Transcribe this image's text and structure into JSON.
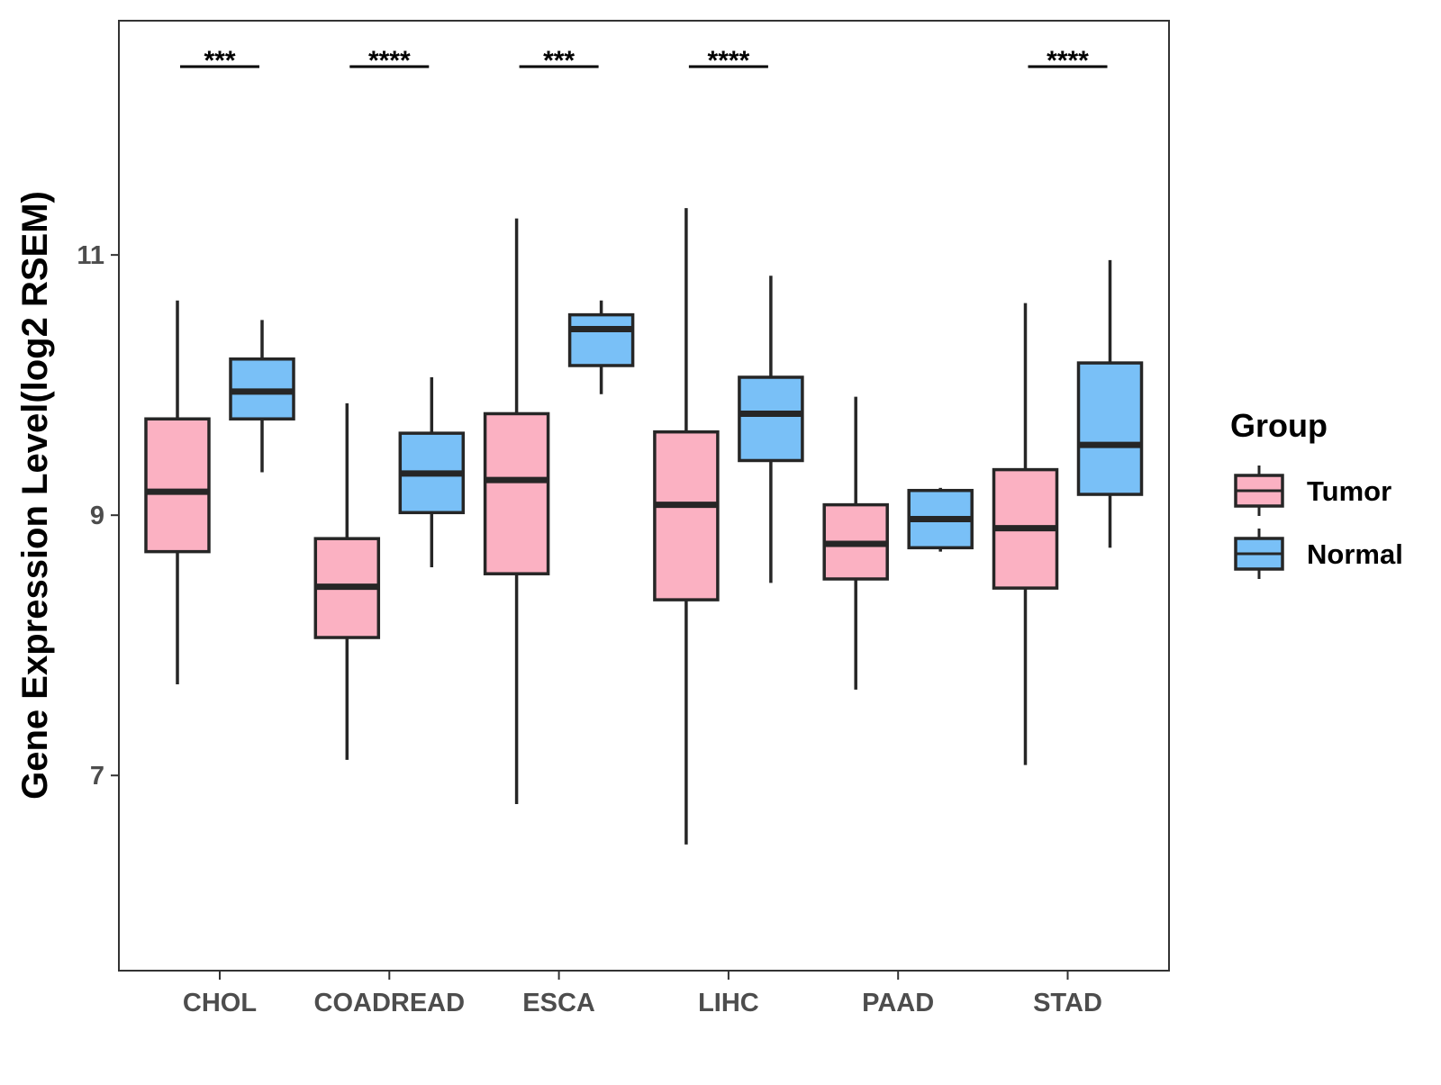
{
  "chart_data": {
    "type": "boxplot",
    "title": "",
    "xlabel": "",
    "ylabel": "Gene Expression Level(log2 RSEM)",
    "ylim": [
      5.5,
      12.8
    ],
    "yticks": [
      7,
      9,
      11
    ],
    "grid": false,
    "categories": [
      "CHOL",
      "COADREAD",
      "ESCA",
      "LIHC",
      "PAAD",
      "STAD"
    ],
    "legend": {
      "title": "Group",
      "position": "right",
      "entries": [
        "Tumor",
        "Normal"
      ]
    },
    "colors": {
      "Tumor": "#FBB1C2",
      "Normal": "#79C0F7",
      "outline": "#262626"
    },
    "series": [
      {
        "name": "Tumor",
        "boxes": [
          {
            "category": "CHOL",
            "min": 7.7,
            "q1": 8.72,
            "median": 9.18,
            "q3": 9.74,
            "max": 10.65
          },
          {
            "category": "COADREAD",
            "min": 7.12,
            "q1": 8.06,
            "median": 8.45,
            "q3": 8.82,
            "max": 9.86
          },
          {
            "category": "ESCA",
            "min": 6.78,
            "q1": 8.55,
            "median": 9.27,
            "q3": 9.78,
            "max": 11.28
          },
          {
            "category": "LIHC",
            "min": 6.47,
            "q1": 8.35,
            "median": 9.08,
            "q3": 9.64,
            "max": 11.36
          },
          {
            "category": "PAAD",
            "min": 7.66,
            "q1": 8.51,
            "median": 8.78,
            "q3": 9.08,
            "max": 9.91
          },
          {
            "category": "STAD",
            "min": 7.08,
            "q1": 8.44,
            "median": 8.9,
            "q3": 9.35,
            "max": 10.63
          }
        ]
      },
      {
        "name": "Normal",
        "boxes": [
          {
            "category": "CHOL",
            "min": 9.33,
            "q1": 9.74,
            "median": 9.95,
            "q3": 10.2,
            "max": 10.5
          },
          {
            "category": "COADREAD",
            "min": 8.6,
            "q1": 9.02,
            "median": 9.32,
            "q3": 9.63,
            "max": 10.06
          },
          {
            "category": "ESCA",
            "min": 9.93,
            "q1": 10.15,
            "median": 10.43,
            "q3": 10.54,
            "max": 10.65
          },
          {
            "category": "LIHC",
            "min": 8.48,
            "q1": 9.42,
            "median": 9.78,
            "q3": 10.06,
            "max": 10.84
          },
          {
            "category": "PAAD",
            "min": 8.72,
            "q1": 8.75,
            "median": 8.97,
            "q3": 9.19,
            "max": 9.21
          },
          {
            "category": "STAD",
            "min": 8.75,
            "q1": 9.16,
            "median": 9.54,
            "q3": 10.17,
            "max": 10.96
          }
        ]
      }
    ],
    "significance": [
      {
        "category": "CHOL",
        "label": "***"
      },
      {
        "category": "COADREAD",
        "label": "****"
      },
      {
        "category": "ESCA",
        "label": "***"
      },
      {
        "category": "LIHC",
        "label": "****"
      },
      {
        "category": "PAAD",
        "label": ""
      },
      {
        "category": "STAD",
        "label": "****"
      }
    ]
  }
}
